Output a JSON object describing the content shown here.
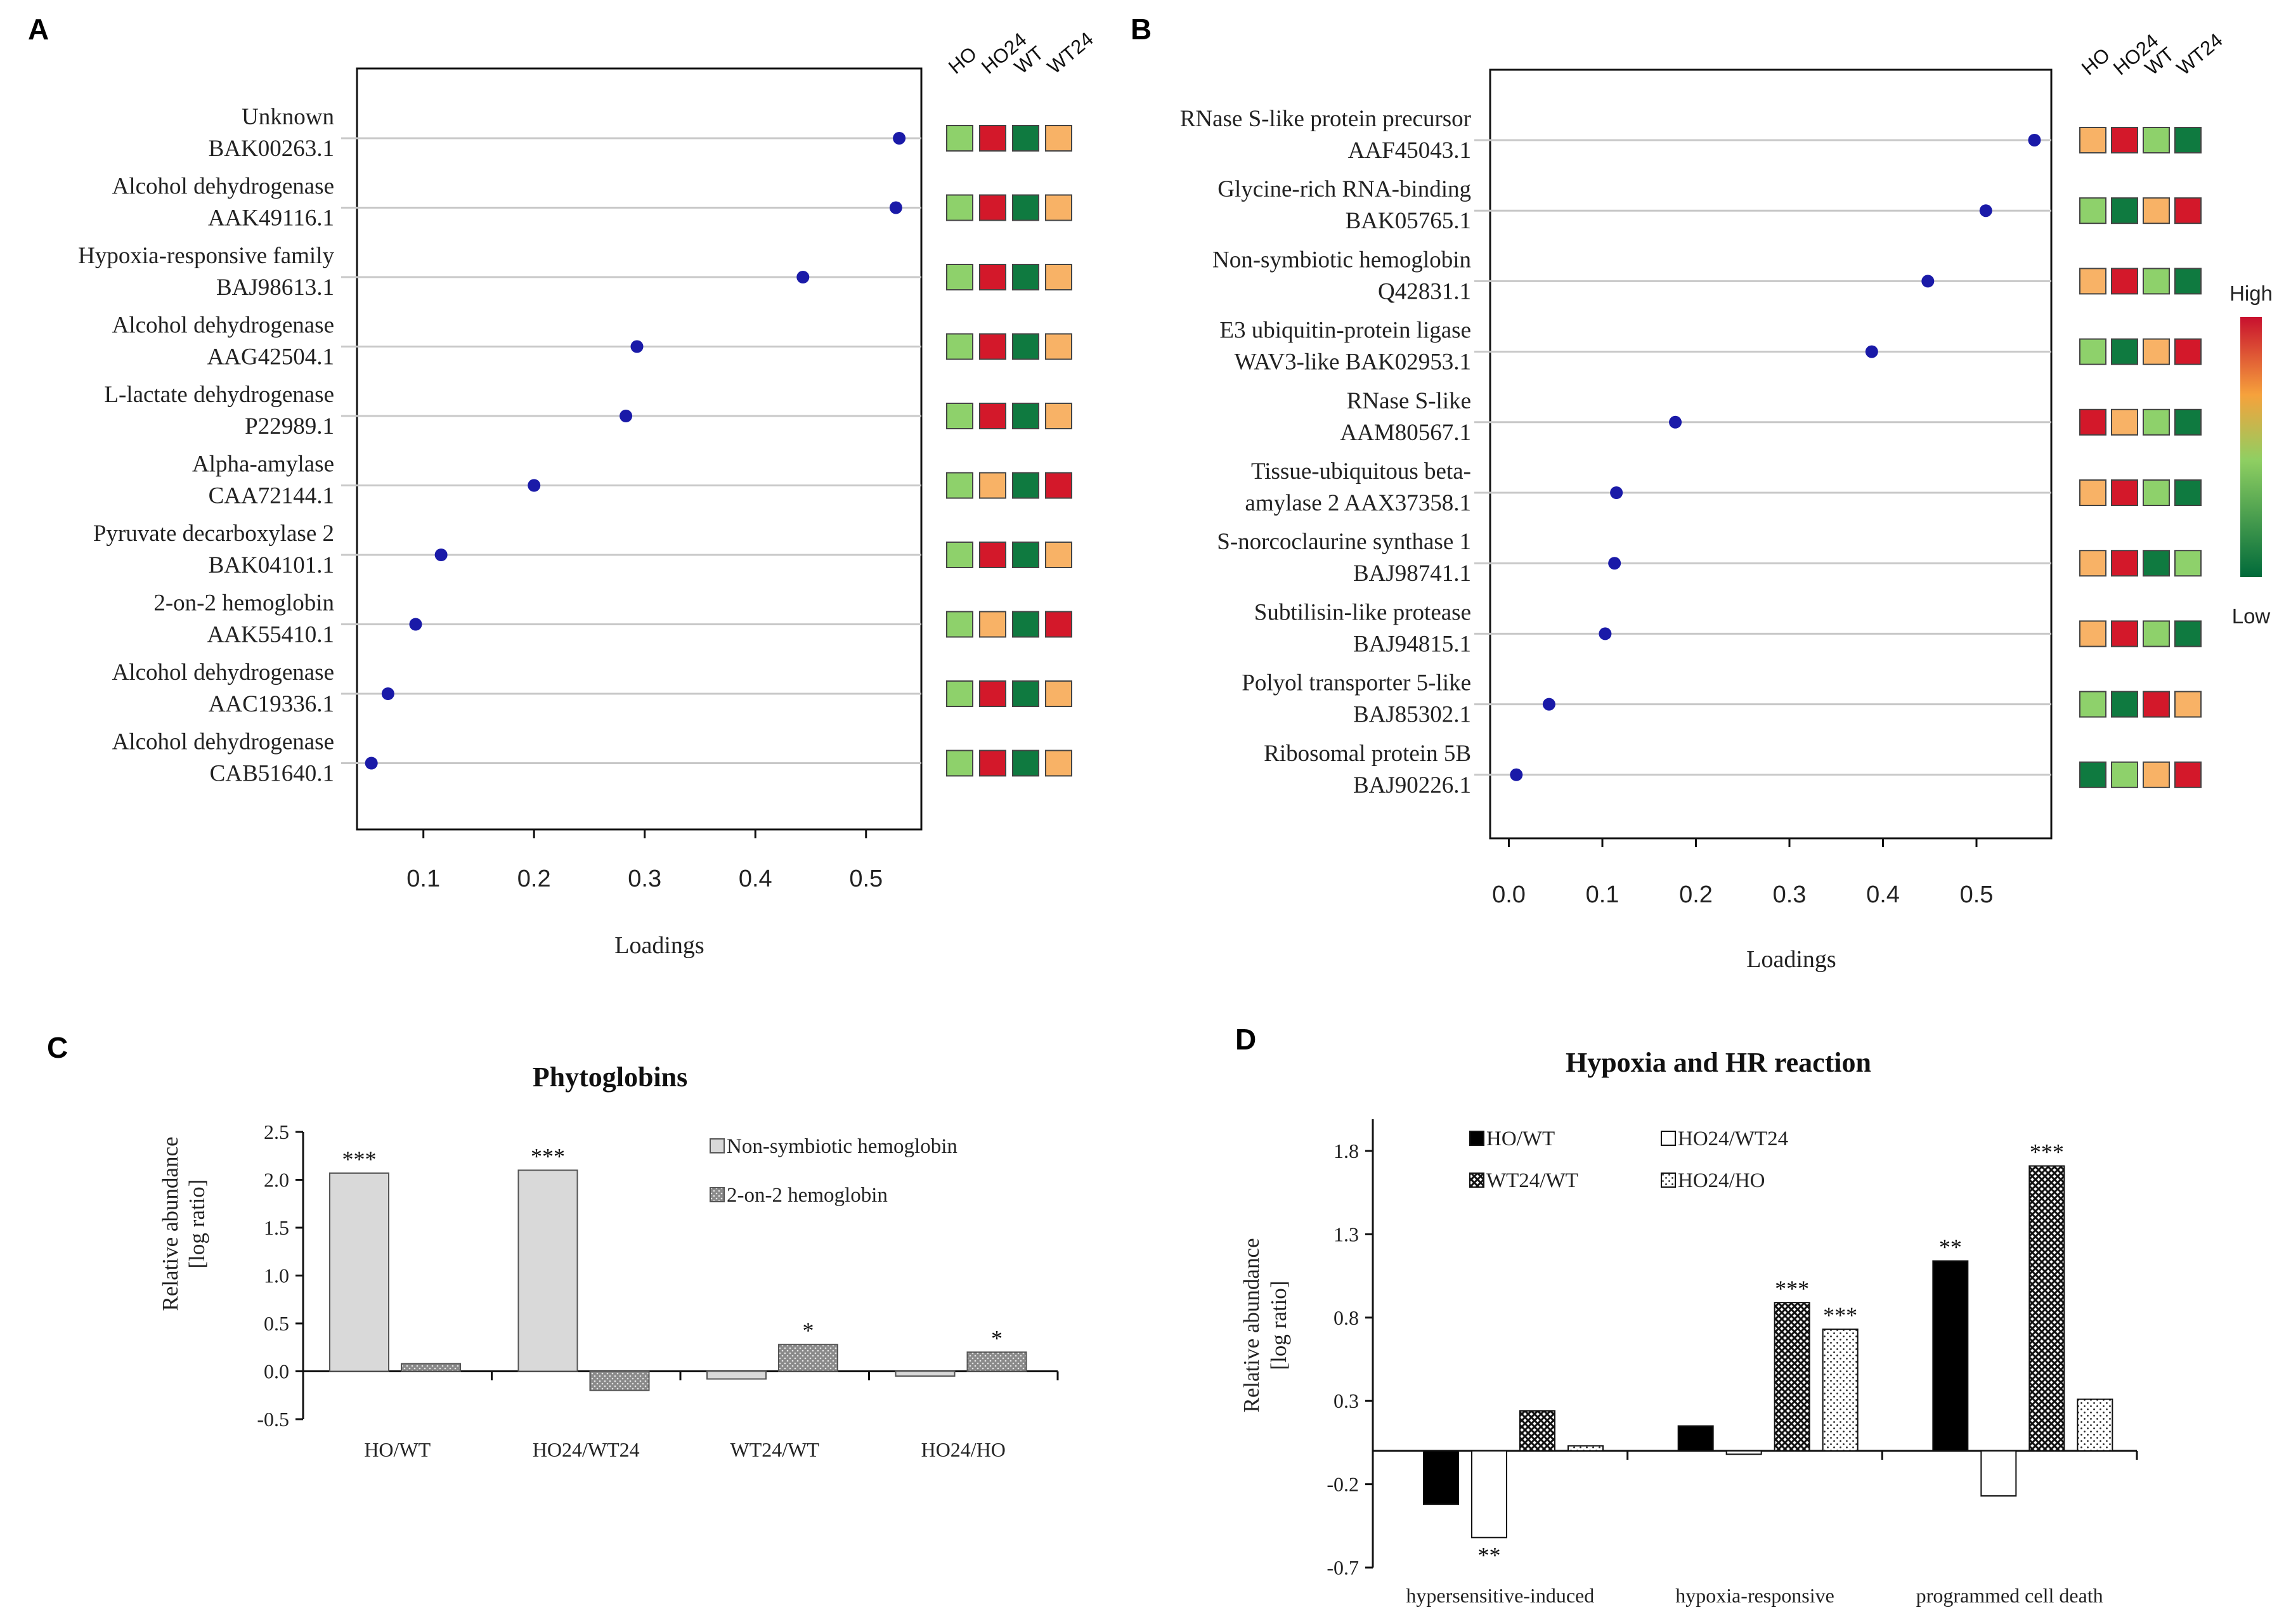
{
  "chart_data": [
    {
      "panel": "A",
      "type": "scatter",
      "xlabel": "Loadings",
      "xlim": [
        0.04,
        0.55
      ],
      "xticks": [
        0.1,
        0.2,
        0.3,
        0.4,
        0.5
      ],
      "xtick_labels": [
        "0.1",
        "0.2",
        "0.3",
        "0.4",
        "0.5"
      ],
      "heatmap_columns": [
        "HO",
        "HO24",
        "WT",
        "WT24"
      ],
      "items": [
        {
          "name": "Unknown",
          "id": "BAK00263.1",
          "value": 0.53,
          "heat": [
            "lightgreen",
            "red",
            "darkgreen",
            "orange"
          ]
        },
        {
          "name": "Alcohol dehydrogenase",
          "id": "AAK49116.1",
          "value": 0.527,
          "heat": [
            "lightgreen",
            "red",
            "darkgreen",
            "orange"
          ]
        },
        {
          "name": "Hypoxia-responsive family",
          "id": "BAJ98613.1",
          "value": 0.443,
          "heat": [
            "lightgreen",
            "red",
            "darkgreen",
            "orange"
          ]
        },
        {
          "name": "Alcohol dehydrogenase",
          "id": "AAG42504.1",
          "value": 0.293,
          "heat": [
            "lightgreen",
            "red",
            "darkgreen",
            "orange"
          ]
        },
        {
          "name": "L-lactate dehydrogenase",
          "id": "P22989.1",
          "value": 0.283,
          "heat": [
            "lightgreen",
            "red",
            "darkgreen",
            "orange"
          ]
        },
        {
          "name": "Alpha-amylase",
          "id": "CAA72144.1",
          "value": 0.2,
          "heat": [
            "lightgreen",
            "orange",
            "darkgreen",
            "red"
          ]
        },
        {
          "name": "Pyruvate decarboxylase 2",
          "id": "BAK04101.1",
          "value": 0.116,
          "heat": [
            "lightgreen",
            "red",
            "darkgreen",
            "orange"
          ]
        },
        {
          "name": "2-on-2 hemoglobin",
          "id": "AAK55410.1",
          "value": 0.093,
          "heat": [
            "lightgreen",
            "orange",
            "darkgreen",
            "red"
          ]
        },
        {
          "name": "Alcohol dehydrogenase",
          "id": "AAC19336.1",
          "value": 0.068,
          "heat": [
            "lightgreen",
            "red",
            "darkgreen",
            "orange"
          ]
        },
        {
          "name": "Alcohol dehydrogenase",
          "id": "CAB51640.1",
          "value": 0.053,
          "heat": [
            "lightgreen",
            "red",
            "darkgreen",
            "orange"
          ]
        }
      ]
    },
    {
      "panel": "B",
      "type": "scatter",
      "xlabel": "Loadings",
      "xlim": [
        -0.02,
        0.58
      ],
      "xticks": [
        0.0,
        0.1,
        0.2,
        0.3,
        0.4,
        0.5
      ],
      "xtick_labels": [
        "0.0",
        "0.1",
        "0.2",
        "0.3",
        "0.4",
        "0.5"
      ],
      "heatmap_columns": [
        "HO",
        "HO24",
        "WT",
        "WT24"
      ],
      "colorbar": {
        "high": "High",
        "low": "Low"
      },
      "items": [
        {
          "name": "RNase S-like protein precursor",
          "id": "AAF45043.1",
          "value": 0.562,
          "heat": [
            "orange",
            "red",
            "lightgreen",
            "darkgreen"
          ]
        },
        {
          "name": "Glycine-rich RNA-binding",
          "id": "BAK05765.1",
          "value": 0.51,
          "heat": [
            "lightgreen",
            "darkgreen",
            "orange",
            "red"
          ]
        },
        {
          "name": "Non-symbiotic hemoglobin",
          "id": "Q42831.1",
          "value": 0.448,
          "heat": [
            "orange",
            "red",
            "lightgreen",
            "darkgreen"
          ]
        },
        {
          "name": "E3 ubiquitin-protein ligase",
          "id": "WAV3-like BAK02953.1",
          "value": 0.388,
          "heat": [
            "lightgreen",
            "darkgreen",
            "orange",
            "red"
          ]
        },
        {
          "name": "RNase S-like",
          "id": "AAM80567.1",
          "value": 0.178,
          "heat": [
            "red",
            "orange",
            "lightgreen",
            "darkgreen"
          ]
        },
        {
          "name": "Tissue-ubiquitous beta-",
          "id": "amylase 2 AAX37358.1",
          "value": 0.115,
          "heat": [
            "orange",
            "red",
            "lightgreen",
            "darkgreen"
          ]
        },
        {
          "name": "S-norcoclaurine synthase 1",
          "id": "BAJ98741.1",
          "value": 0.113,
          "heat": [
            "orange",
            "red",
            "darkgreen",
            "lightgreen"
          ]
        },
        {
          "name": "Subtilisin-like protease",
          "id": "BAJ94815.1",
          "value": 0.103,
          "heat": [
            "orange",
            "red",
            "lightgreen",
            "darkgreen"
          ]
        },
        {
          "name": "Polyol transporter 5-like",
          "id": "BAJ85302.1",
          "value": 0.043,
          "heat": [
            "lightgreen",
            "darkgreen",
            "red",
            "orange"
          ]
        },
        {
          "name": "Ribosomal protein 5B",
          "id": "BAJ90226.1",
          "value": 0.008,
          "heat": [
            "darkgreen",
            "lightgreen",
            "orange",
            "red"
          ]
        }
      ]
    },
    {
      "panel": "C",
      "type": "bar",
      "title": "Phytoglobins",
      "ylabel_line1": "Relative abundance",
      "ylabel_line2": "[log ratio]",
      "ylim": [
        -0.5,
        2.5
      ],
      "yticks": [
        -0.5,
        0.0,
        0.5,
        1.0,
        1.5,
        2.0,
        2.5
      ],
      "ytick_labels": [
        "-0.5",
        "0.0",
        "0.5",
        "1.0",
        "1.5",
        "2.0",
        "2.5"
      ],
      "categories": [
        "HO/WT",
        "HO24/WT24",
        "WT24/WT",
        "HO24/HO"
      ],
      "series": [
        {
          "name": "Non-symbiotic hemoglobin",
          "values": [
            2.07,
            2.1,
            -0.08,
            -0.05
          ],
          "stars": [
            "***",
            "***",
            "",
            ""
          ]
        },
        {
          "name": "2-on-2 hemoglobin",
          "values": [
            0.08,
            -0.2,
            0.28,
            0.2
          ],
          "stars": [
            "",
            "",
            "*",
            "*"
          ]
        }
      ]
    },
    {
      "panel": "D",
      "type": "bar",
      "title": "Hypoxia and HR reaction",
      "ylabel_line1": "Relative abundance",
      "ylabel_line2": "[log ratio]",
      "ylim": [
        -0.7,
        2.0
      ],
      "yticks": [
        -0.7,
        -0.2,
        0.3,
        0.8,
        1.3,
        1.8
      ],
      "ytick_labels": [
        "-0.7",
        "-0.2",
        "0.3",
        "0.8",
        "1.3",
        "1.8"
      ],
      "categories": [
        "hypersensitive-induced",
        "hypoxia-responsive",
        "programmed cell death"
      ],
      "series": [
        {
          "name": "HO/WT",
          "values": [
            -0.32,
            0.15,
            1.14
          ],
          "stars": [
            "",
            "",
            "**"
          ]
        },
        {
          "name": "HO24/WT24",
          "values": [
            -0.52,
            -0.02,
            -0.27
          ],
          "stars": [
            "**",
            "",
            ""
          ]
        },
        {
          "name": "WT24/WT",
          "values": [
            0.24,
            0.89,
            1.71
          ],
          "stars": [
            "",
            "***",
            "***"
          ]
        },
        {
          "name": "HO24/HO",
          "values": [
            0.03,
            0.73,
            0.31
          ],
          "stars": [
            "",
            "***",
            ""
          ]
        }
      ]
    }
  ],
  "colors": {
    "dot": "#1a1aa8",
    "red": "#d3182a",
    "orange": "#f8b266",
    "lightgreen": "#8ed16b",
    "darkgreen": "#0f7a40",
    "barLight": "#d9d9d9",
    "barDotted": "#8c8c8c"
  }
}
